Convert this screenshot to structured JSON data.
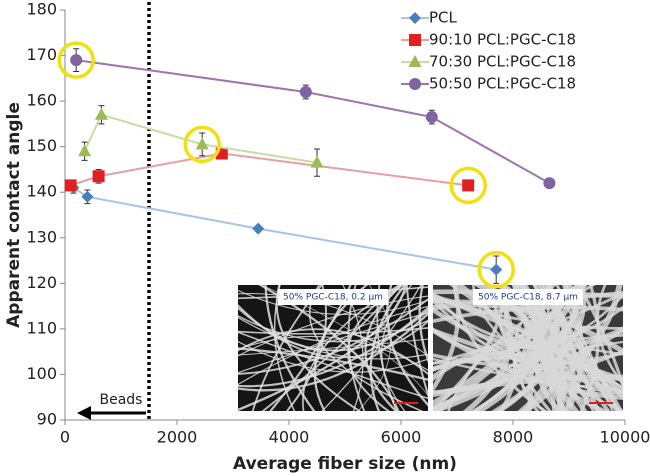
{
  "chart_data": {
    "type": "line",
    "x_label": "Average fiber size (nm)",
    "y_label": "Apparent contact angle",
    "xlim": [
      0,
      10000
    ],
    "xticks": [
      0,
      2000,
      4000,
      6000,
      8000,
      10000
    ],
    "ylim": [
      90,
      180
    ],
    "yticks": [
      90,
      100,
      110,
      120,
      130,
      140,
      150,
      160,
      170,
      180
    ],
    "grid": false,
    "legend": "upper right",
    "series": [
      {
        "name": "PCL",
        "color": "#4a7ebb",
        "line_color": "#a9c4e4",
        "marker": "diamond",
        "x": [
          150,
          400,
          3450,
          7700
        ],
        "values": [
          141,
          139,
          132,
          123
        ],
        "errors": [
          1.2,
          1.5,
          0.5,
          3
        ],
        "highlighted": [
          3
        ]
      },
      {
        "name": "90:10 PCL:PGC-C18",
        "color": "#e02020",
        "line_color": "#e6a0a0",
        "marker": "square",
        "x": [
          100,
          600,
          2800,
          7200
        ],
        "values": [
          141.5,
          143.5,
          148.5,
          141.5
        ],
        "errors": [
          1,
          1.5,
          1,
          1
        ],
        "highlighted": [
          3
        ]
      },
      {
        "name": "70:30 PCL:PGC-C18",
        "color": "#9bbb59",
        "line_color": "#c8dca4",
        "marker": "triangle",
        "x": [
          350,
          650,
          2450,
          4500
        ],
        "values": [
          149,
          157,
          150.5,
          146.5
        ],
        "errors": [
          2,
          2,
          2.5,
          3
        ],
        "highlighted": [
          2
        ]
      },
      {
        "name": "50:50 PCL:PGC-C18",
        "color": "#8064a2",
        "line_color": "#9d74ad",
        "marker": "circle",
        "x": [
          200,
          4300,
          6550,
          8650
        ],
        "values": [
          169,
          162,
          156.5,
          142
        ],
        "errors": [
          2.5,
          1.5,
          1.5,
          0.5
        ],
        "highlighted": [
          0
        ]
      }
    ],
    "annotation": {
      "text": "Beads",
      "x": 1500
    },
    "insets": [
      {
        "label": "50% PGC-C18, 0.2 µm"
      },
      {
        "label": "50% PGC-C18, 8.7 µm"
      }
    ]
  }
}
